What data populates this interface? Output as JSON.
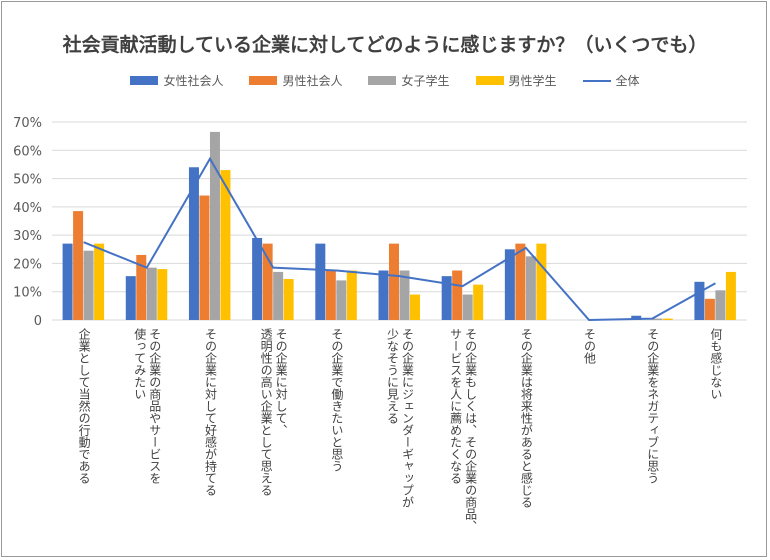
{
  "chart_data": {
    "type": "bar",
    "title": "社会貢献活動している企業に対してどのように感じますか？（いくつでも）",
    "categories": [
      "企業として当然の行動である",
      "その企業の商品やサービスを\n使ってみたい",
      "その企業に対して好感が持てる",
      "その企業に対して、\n透明性の高い企業として思える",
      "その企業で働きたいと思う",
      "その企業にジェンダーギャップが\n少なそうに見える",
      "その企業もしくは、その企業の商品、\nサービスを人に薦めたくなる",
      "その企業は将来性があると感じる",
      "その他",
      "その企業をネガティブに思う",
      "何も感じない"
    ],
    "series": [
      {
        "name": "女性社会人",
        "type": "bar",
        "color": "#4472C4",
        "values": [
          27,
          15.5,
          54,
          29,
          27,
          17.5,
          15.5,
          25,
          0,
          1.5,
          13.5
        ]
      },
      {
        "name": "男性社会人",
        "type": "bar",
        "color": "#ED7D31",
        "values": [
          38.5,
          23,
          44,
          27,
          17.5,
          27,
          17.5,
          27,
          0,
          0,
          7.5
        ]
      },
      {
        "name": "女子学生",
        "type": "bar",
        "color": "#A5A5A5",
        "values": [
          24.5,
          18.5,
          66.5,
          17,
          14,
          17.5,
          9,
          22.5,
          0,
          0.5,
          10.5
        ]
      },
      {
        "name": "男性学生",
        "type": "bar",
        "color": "#FFC000",
        "values": [
          27,
          18,
          53,
          14.5,
          17.5,
          9,
          12.5,
          27,
          0,
          0.5,
          17
        ]
      },
      {
        "name": "全体",
        "type": "line",
        "color": "#4472C4",
        "values": [
          27.5,
          18.5,
          57,
          18.5,
          17.5,
          15.5,
          12,
          25.5,
          0,
          0.5,
          13
        ]
      }
    ],
    "yticks": [
      "0",
      "10%",
      "20%",
      "30%",
      "40%",
      "50%",
      "60%",
      "70%"
    ],
    "ylim": [
      0,
      70
    ],
    "grid": true,
    "legend": "top"
  }
}
